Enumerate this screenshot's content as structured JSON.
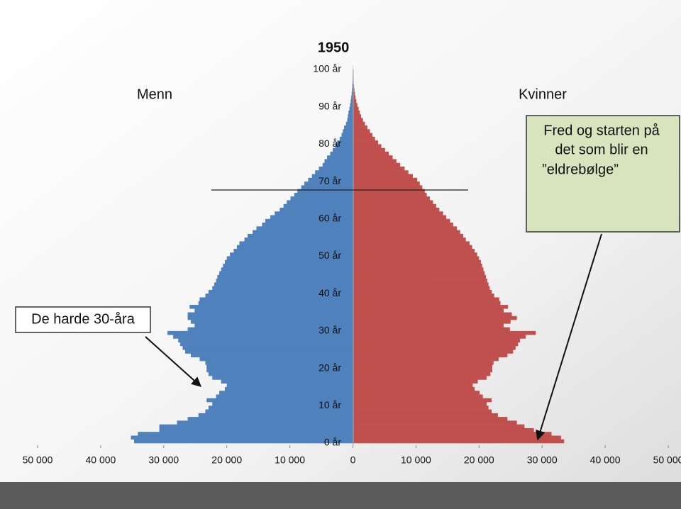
{
  "chart_data": {
    "type": "pyramid",
    "title": "1950",
    "left_label": "Menn",
    "right_label": "Kvinner",
    "annotations": [
      {
        "lines": [
          "Fred og starten på",
          "det som blir en",
          "”eldrebølge”"
        ]
      },
      {
        "lines": [
          "De harde 30-åra"
        ]
      }
    ],
    "categories": [
      "0 år",
      null,
      null,
      null,
      null,
      null,
      null,
      null,
      null,
      null,
      "10 år",
      null,
      null,
      null,
      null,
      null,
      null,
      null,
      null,
      null,
      "20 år",
      null,
      null,
      null,
      null,
      null,
      null,
      null,
      null,
      null,
      "30 år",
      null,
      null,
      null,
      null,
      null,
      null,
      null,
      null,
      null,
      "40 år",
      null,
      null,
      null,
      null,
      null,
      null,
      null,
      null,
      null,
      "50 år",
      null,
      null,
      null,
      null,
      null,
      null,
      null,
      null,
      null,
      "60 år",
      null,
      null,
      null,
      null,
      null,
      null,
      null,
      null,
      null,
      "70 år",
      null,
      null,
      null,
      null,
      null,
      null,
      null,
      null,
      null,
      "80 år",
      null,
      null,
      null,
      null,
      null,
      null,
      null,
      null,
      null,
      "90 år",
      null,
      null,
      null,
      null,
      null,
      null,
      null,
      null,
      null,
      "100 år"
    ],
    "series": [
      {
        "name": "Menn",
        "color": "#4f81bd",
        "side": "left",
        "values": [
          34700,
          35200,
          34100,
          30700,
          30700,
          27900,
          26200,
          24500,
          23400,
          22900,
          22300,
          23200,
          21700,
          21200,
          20300,
          20000,
          20900,
          22300,
          22900,
          23200,
          23200,
          23400,
          24300,
          25700,
          26600,
          27000,
          27400,
          27700,
          28500,
          29400,
          26200,
          25100,
          25700,
          26200,
          26200,
          25100,
          25900,
          24500,
          24300,
          23400,
          22900,
          22300,
          22000,
          21700,
          21500,
          21200,
          20900,
          20600,
          20300,
          20000,
          19500,
          18900,
          18400,
          18000,
          17200,
          16700,
          15900,
          15300,
          14400,
          13900,
          13100,
          12400,
          11600,
          11000,
          10500,
          9900,
          9300,
          8800,
          8200,
          7700,
          7100,
          6500,
          6000,
          5400,
          4800,
          4500,
          4100,
          3600,
          3200,
          2800,
          2500,
          2100,
          1800,
          1600,
          1400,
          1100,
          900,
          800,
          700,
          560,
          450,
          350,
          270,
          200,
          140,
          100,
          70,
          50,
          30,
          20,
          10
        ]
      },
      {
        "name": "Kvinner",
        "color": "#c0504d",
        "side": "right",
        "values": [
          33500,
          33000,
          31500,
          28700,
          27200,
          26000,
          24500,
          23000,
          22000,
          21500,
          21200,
          22000,
          20600,
          20100,
          19300,
          19000,
          19800,
          21200,
          21800,
          22100,
          22100,
          22300,
          23100,
          24500,
          25400,
          25800,
          26200,
          26500,
          27400,
          29000,
          24900,
          23900,
          25000,
          26000,
          25200,
          23900,
          24600,
          23400,
          23200,
          22400,
          22000,
          21700,
          21500,
          21300,
          21100,
          20900,
          20700,
          20500,
          20300,
          20000,
          19700,
          19300,
          18900,
          18500,
          17900,
          17500,
          17000,
          16500,
          15900,
          15400,
          14800,
          14300,
          13700,
          13200,
          12700,
          12200,
          11700,
          11400,
          11000,
          10600,
          10200,
          9500,
          8800,
          8200,
          7500,
          6900,
          6300,
          5700,
          5100,
          4500,
          4000,
          3500,
          3100,
          2700,
          2300,
          1900,
          1600,
          1300,
          1100,
          900,
          700,
          550,
          420,
          320,
          240,
          170,
          120,
          80,
          50,
          30,
          20
        ]
      }
    ],
    "xlim": [
      -50000,
      50000
    ],
    "xticks": [
      {
        "value": -50000,
        "label": "50 000"
      },
      {
        "value": -40000,
        "label": "40 000"
      },
      {
        "value": -30000,
        "label": "30 000"
      },
      {
        "value": -20000,
        "label": "20 000"
      },
      {
        "value": -10000,
        "label": "10 000"
      },
      0,
      {
        "value": 10000,
        "label": "10 000"
      },
      {
        "value": 20000,
        "label": "20 000"
      },
      {
        "value": 30000,
        "label": "30 000"
      },
      {
        "value": 40000,
        "label": "40 000"
      },
      {
        "value": 50000,
        "label": "50 000"
      }
    ]
  }
}
